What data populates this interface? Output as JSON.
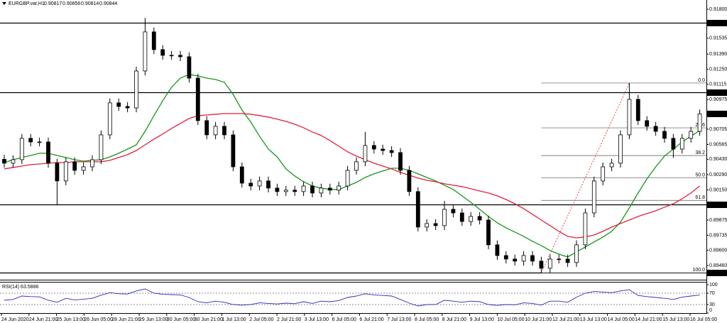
{
  "chart_data": {
    "type": "candlestick",
    "title": "EURGBP.var,H1",
    "ohlc_header": [
      0.90817,
      0.90856,
      0.90814,
      0.90844
    ],
    "open": [
      0.9043,
      0.90394,
      0.90426,
      0.90621,
      0.90588,
      0.90588,
      0.90394,
      0.90232,
      0.90407,
      0.90329,
      0.90361,
      0.90426,
      0.90653,
      0.90945,
      0.90912,
      0.90899,
      0.91236,
      0.91593,
      0.91431,
      0.91379,
      0.91379,
      0.91366,
      0.91171,
      0.90783,
      0.90653,
      0.90731,
      0.90653,
      0.90361,
      0.90212,
      0.90186,
      0.90232,
      0.90167,
      0.90135,
      0.90148,
      0.90135,
      0.90186,
      0.90122,
      0.90167,
      0.90148,
      0.90186,
      0.90329,
      0.90407,
      0.90556,
      0.90523,
      0.9051,
      0.90491,
      0.90329,
      0.90135,
      0.89811,
      0.89843,
      0.89824,
      0.89973,
      0.8994,
      0.89862,
      0.89908,
      0.89875,
      0.89649,
      0.89551,
      0.89519,
      0.895,
      0.89551,
      0.895,
      0.89435,
      0.89519,
      0.89519,
      0.89487,
      0.89649,
      0.8994,
      0.90232,
      0.90361,
      0.90394,
      0.90653,
      0.90977,
      0.90783,
      0.90731,
      0.90685,
      0.90621,
      0.90523,
      0.90621,
      0.90685
    ],
    "high": [
      0.9047,
      0.90466,
      0.90661,
      0.90661,
      0.90628,
      0.90628,
      0.90434,
      0.90447,
      0.90447,
      0.90401,
      0.90466,
      0.90693,
      0.90985,
      0.90985,
      0.90952,
      0.91276,
      0.9172,
      0.91633,
      0.91471,
      0.91419,
      0.91419,
      0.91406,
      0.91211,
      0.90823,
      0.90771,
      0.90771,
      0.90693,
      0.90401,
      0.90252,
      0.90272,
      0.90272,
      0.90207,
      0.90188,
      0.90188,
      0.90226,
      0.90226,
      0.90207,
      0.90207,
      0.90226,
      0.90369,
      0.90447,
      0.9068,
      0.90596,
      0.90563,
      0.9055,
      0.90531,
      0.90369,
      0.90175,
      0.89883,
      0.89883,
      0.9005,
      0.90013,
      0.8998,
      0.89948,
      0.89948,
      0.89915,
      0.89689,
      0.89591,
      0.89559,
      0.89591,
      0.89591,
      0.8954,
      0.89559,
      0.89559,
      0.89559,
      0.89689,
      0.8998,
      0.90272,
      0.90401,
      0.90434,
      0.90693,
      0.91126,
      0.91017,
      0.90823,
      0.90771,
      0.90725,
      0.90661,
      0.90661,
      0.90725,
      0.90884
    ],
    "low": [
      0.90354,
      0.90354,
      0.90386,
      0.90548,
      0.90548,
      0.90354,
      0.9001,
      0.90192,
      0.90289,
      0.90289,
      0.90321,
      0.90386,
      0.90613,
      0.90872,
      0.90859,
      0.90859,
      0.91196,
      0.91391,
      0.91339,
      0.91339,
      0.91326,
      0.91131,
      0.90743,
      0.90613,
      0.90613,
      0.90613,
      0.90321,
      0.90172,
      0.90146,
      0.90146,
      0.90127,
      0.90095,
      0.90095,
      0.90095,
      0.90095,
      0.90082,
      0.90082,
      0.90108,
      0.90108,
      0.90146,
      0.90289,
      0.90367,
      0.90483,
      0.9047,
      0.90451,
      0.90289,
      0.90095,
      0.89771,
      0.89771,
      0.89784,
      0.89784,
      0.899,
      0.89822,
      0.89822,
      0.89835,
      0.89609,
      0.89511,
      0.89479,
      0.8946,
      0.8946,
      0.8946,
      0.89393,
      0.89395,
      0.89479,
      0.89447,
      0.89447,
      0.89609,
      0.899,
      0.90192,
      0.90321,
      0.90354,
      0.90613,
      0.90743,
      0.90691,
      0.90645,
      0.90581,
      0.90443,
      0.90483,
      0.90581,
      0.90645
    ],
    "close": [
      0.90394,
      0.90426,
      0.90621,
      0.90588,
      0.90588,
      0.90394,
      0.90232,
      0.90407,
      0.90329,
      0.90361,
      0.90426,
      0.90653,
      0.90945,
      0.90912,
      0.90899,
      0.91236,
      0.91593,
      0.91431,
      0.91379,
      0.91379,
      0.91366,
      0.91171,
      0.90783,
      0.90653,
      0.90731,
      0.90653,
      0.90361,
      0.90212,
      0.90186,
      0.90232,
      0.90167,
      0.90135,
      0.90148,
      0.90135,
      0.90186,
      0.90122,
      0.90167,
      0.90148,
      0.90186,
      0.90329,
      0.90407,
      0.90556,
      0.90523,
      0.9051,
      0.90491,
      0.90329,
      0.90135,
      0.89811,
      0.89843,
      0.89824,
      0.89973,
      0.8994,
      0.89862,
      0.89908,
      0.89875,
      0.89649,
      0.89551,
      0.89519,
      0.895,
      0.89551,
      0.895,
      0.89435,
      0.89519,
      0.89519,
      0.89487,
      0.89649,
      0.8994,
      0.90232,
      0.90361,
      0.90394,
      0.90653,
      0.90977,
      0.90783,
      0.90731,
      0.90685,
      0.90621,
      0.90523,
      0.90621,
      0.90685,
      0.90844
    ],
    "ylim": [
      0.89337,
      0.91884
    ],
    "yticks": [
      {
        "value": 0.918,
        "label": "0.91800"
      },
      {
        "value": 0.91535,
        "label": "0.91535"
      },
      {
        "value": 0.9139,
        "label": "0.91390"
      },
      {
        "value": 0.9125,
        "label": "0.91250"
      },
      {
        "value": 0.91115,
        "label": "0.91115"
      },
      {
        "value": 0.90975,
        "label": "0.90975"
      },
      {
        "value": 0.90705,
        "label": "0.90705"
      },
      {
        "value": 0.90565,
        "label": "0.90565"
      },
      {
        "value": 0.9043,
        "label": "0.90430"
      },
      {
        "value": 0.9029,
        "label": "0.90290"
      },
      {
        "value": 0.9015,
        "label": "0.90150"
      },
      {
        "value": 0.89875,
        "label": "0.89875"
      },
      {
        "value": 0.89735,
        "label": "0.89735"
      },
      {
        "value": 0.896,
        "label": "0.89600"
      },
      {
        "value": 0.8946,
        "label": "0.89460"
      }
    ],
    "moving_averages": [
      {
        "color": "#17961a",
        "values": [
          0.904,
          0.90426,
          0.90446,
          0.90465,
          0.90485,
          0.90485,
          0.90465,
          0.90446,
          0.90426,
          0.90413,
          0.9042,
          0.90426,
          0.90452,
          0.90485,
          0.90523,
          0.90562,
          0.90685,
          0.90828,
          0.90964,
          0.91087,
          0.91171,
          0.91204,
          0.91191,
          0.91171,
          0.91158,
          0.91133,
          0.91022,
          0.9088,
          0.9077,
          0.9064,
          0.90523,
          0.90452,
          0.90342,
          0.90277,
          0.90225,
          0.90186,
          0.90167,
          0.90154,
          0.90154,
          0.90186,
          0.90219,
          0.90264,
          0.90297,
          0.90323,
          0.90348,
          0.90348,
          0.90329,
          0.90297,
          0.90264,
          0.90232,
          0.90193,
          0.90154,
          0.90096,
          0.90037,
          0.89973,
          0.89908,
          0.8985,
          0.89804,
          0.89765,
          0.89726,
          0.89681,
          0.89642,
          0.89597,
          0.89564,
          0.89538,
          0.89584,
          0.89629,
          0.89675,
          0.8972,
          0.89772,
          0.89856,
          0.89986,
          0.90122,
          0.90251,
          0.90361,
          0.90459,
          0.90523,
          0.90588,
          0.9064,
          0.90692
        ]
      },
      {
        "color": "#e0203c",
        "values": [
          0.90342,
          0.90355,
          0.90368,
          0.90381,
          0.90387,
          0.90394,
          0.904,
          0.904,
          0.90407,
          0.90407,
          0.90407,
          0.90407,
          0.9042,
          0.90446,
          0.90472,
          0.9051,
          0.90562,
          0.90614,
          0.9066,
          0.90711,
          0.90757,
          0.90802,
          0.90828,
          0.90834,
          0.90841,
          0.90847,
          0.90847,
          0.90847,
          0.90841,
          0.90828,
          0.90815,
          0.90796,
          0.90776,
          0.9075,
          0.90718,
          0.90679,
          0.90647,
          0.90601,
          0.90549,
          0.90498,
          0.90459,
          0.90426,
          0.90394,
          0.90368,
          0.90342,
          0.9031,
          0.90284,
          0.90258,
          0.90238,
          0.90225,
          0.90206,
          0.90193,
          0.9018,
          0.90161,
          0.90141,
          0.90122,
          0.90096,
          0.90063,
          0.90024,
          0.89979,
          0.89927,
          0.89875,
          0.89824,
          0.89772,
          0.89726,
          0.89713,
          0.8972,
          0.89739,
          0.89772,
          0.89811,
          0.89843,
          0.89875,
          0.89908,
          0.89934,
          0.8996,
          0.89992,
          0.90024,
          0.9007,
          0.90122,
          0.90186
        ]
      }
    ],
    "levels": [
      0.91677,
      0.91043,
      0.90019,
      0.89393
    ],
    "last_price": 0.90844,
    "fibonacci": {
      "color": "#e02020",
      "levels": [
        {
          "label": "0.0",
          "price": 0.91126
        },
        {
          "label": "23.6",
          "price": 0.90717
        },
        {
          "label": "38.2",
          "price": 0.90464
        },
        {
          "label": "50.0",
          "price": 0.9026
        },
        {
          "label": "61.8",
          "price": 0.90055
        },
        {
          "label": "100.0",
          "price": 0.89393
        }
      ]
    },
    "xticks": [
      "24 Jun 2020",
      "24 Jun 21:00",
      "25 Jun 13:00",
      "26 Jun 05:00",
      "28 Jun 21:00",
      "29 Jun 13:00",
      "30 Jun 05:00",
      "30 Jun 21:00",
      "1 Jul 13:00",
      "2 Jul 05:00",
      "2 Jul 21:00",
      "3 Jul 13:00",
      "6 Jul 05:00",
      "6 Jul 21:00",
      "7 Jul 13:00",
      "8 Jul 05:00",
      "8 Jul 21:00",
      "9 Jul 13:00",
      "10 Jul 05:00",
      "10 Jul 21:00",
      "12 Jul 21:00",
      "13 Jul 13:00",
      "14 Jul 05:00",
      "14 Jul 21:00",
      "15 Jul 13:00",
      "16 Jul 05:00"
    ],
    "rsi": {
      "label": "RSI(14) 63.5886",
      "color": "#2a2ab8",
      "ylim": [
        0,
        100
      ],
      "yticks": [
        100,
        70,
        30,
        0
      ],
      "levels": [
        70,
        30
      ],
      "values": [
        45,
        48,
        60,
        58,
        57,
        45,
        38,
        52,
        46,
        49,
        52,
        63,
        72,
        68,
        67,
        78,
        85,
        70,
        66,
        65,
        64,
        55,
        40,
        36,
        42,
        38,
        30,
        28,
        30,
        36,
        34,
        32,
        35,
        33,
        40,
        34,
        42,
        40,
        44,
        55,
        60,
        68,
        64,
        62,
        60,
        48,
        35,
        25,
        30,
        30,
        45,
        42,
        38,
        42,
        40,
        30,
        27,
        30,
        29,
        36,
        34,
        28,
        42,
        42,
        38,
        56,
        70,
        76,
        74,
        72,
        78,
        82,
        62,
        58,
        55,
        52,
        48,
        56,
        60,
        63.5886
      ]
    }
  }
}
